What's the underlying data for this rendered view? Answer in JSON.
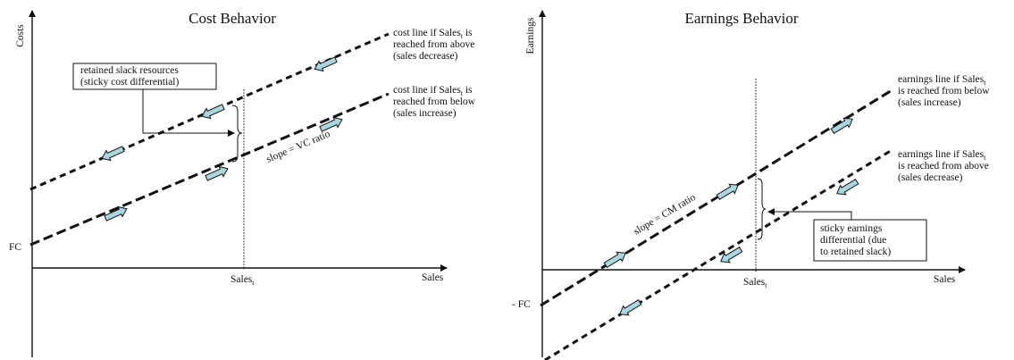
{
  "left": {
    "title": "Cost Behavior",
    "ylabel": "Costs",
    "xlabel": "Sales",
    "fc_label": "FC",
    "sales_t": {
      "base": "Sales",
      "sub": "t"
    },
    "upper_line_label": [
      "cost line if Sales",
      "t",
      " is",
      "reached from above",
      "(sales decrease)"
    ],
    "lower_line_label": [
      "cost line if Sales",
      "t",
      " is",
      "reached from below",
      "(sales increase)"
    ],
    "box_lines": [
      "retained slack resources",
      "(sticky cost differential)"
    ],
    "slope_label": "slope = VC ratio"
  },
  "right": {
    "title": "Earnings Behavior",
    "ylabel": "Earnings",
    "xlabel": "Sales",
    "fc_label": "- FC",
    "sales_t": {
      "base": "Sales",
      "sub": "t"
    },
    "upper_line_label": [
      "earnings line if Sales",
      "t",
      "is reached from below",
      "(sales increase)"
    ],
    "lower_line_label": [
      "earnings line if Sales",
      "t",
      "is reached from above",
      "(sales decrease)"
    ],
    "box_lines": [
      "sticky earnings",
      "differential (due",
      "to retained slack)"
    ],
    "slope_label": "slope = CM ratio"
  },
  "colors": {
    "arrow_fill": "#a9d6e0",
    "line": "#111111"
  }
}
